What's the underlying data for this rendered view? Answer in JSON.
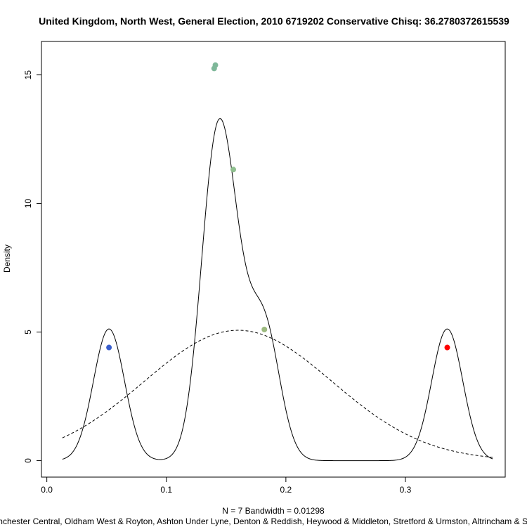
{
  "chart_data": {
    "type": "density",
    "title": "United Kingdom, North West, General Election, 2010 6719202 Conservative Chisq: 36.2780372615539",
    "xlabel": "N = 7   Bandwidth = 0.01298",
    "sublabel": "Manchester Central, Oldham West & Royton, Ashton Under Lyne, Denton & Reddish, Heywood & Middleton, Stretford & Urmston, Altrincham & Sale West",
    "ylabel": "Density",
    "xlim": [
      0,
      0.375
    ],
    "ylim": [
      0,
      16
    ],
    "x_ticks": [
      0.0,
      0.1,
      0.2,
      0.3
    ],
    "x_tick_labels": [
      "0.0",
      "0.1",
      "0.2",
      "0.3"
    ],
    "y_ticks": [
      0,
      5,
      10,
      15
    ],
    "y_tick_labels": [
      "0",
      "5",
      "10",
      "15"
    ],
    "bandwidth": 0.01298,
    "n": 7,
    "density_range": [
      0.013,
      0.373
    ],
    "points": [
      {
        "x": 0.052,
        "y": 4.4,
        "color": "#3a5fcd"
      },
      {
        "x": 0.14,
        "y": 15.25,
        "color": "#7fb89a"
      },
      {
        "x": 0.141,
        "y": 15.38,
        "color": "#7fb89a"
      },
      {
        "x": 0.156,
        "y": 11.32,
        "color": "#8fbf8f"
      },
      {
        "x": 0.182,
        "y": 5.1,
        "color": "#9cba7f"
      },
      {
        "x": 0.335,
        "y": 4.4,
        "color": "#ff0000"
      }
    ],
    "normal_curve": {
      "mean": 0.16,
      "sd": 0.0787
    },
    "grid": false,
    "legend": false
  }
}
